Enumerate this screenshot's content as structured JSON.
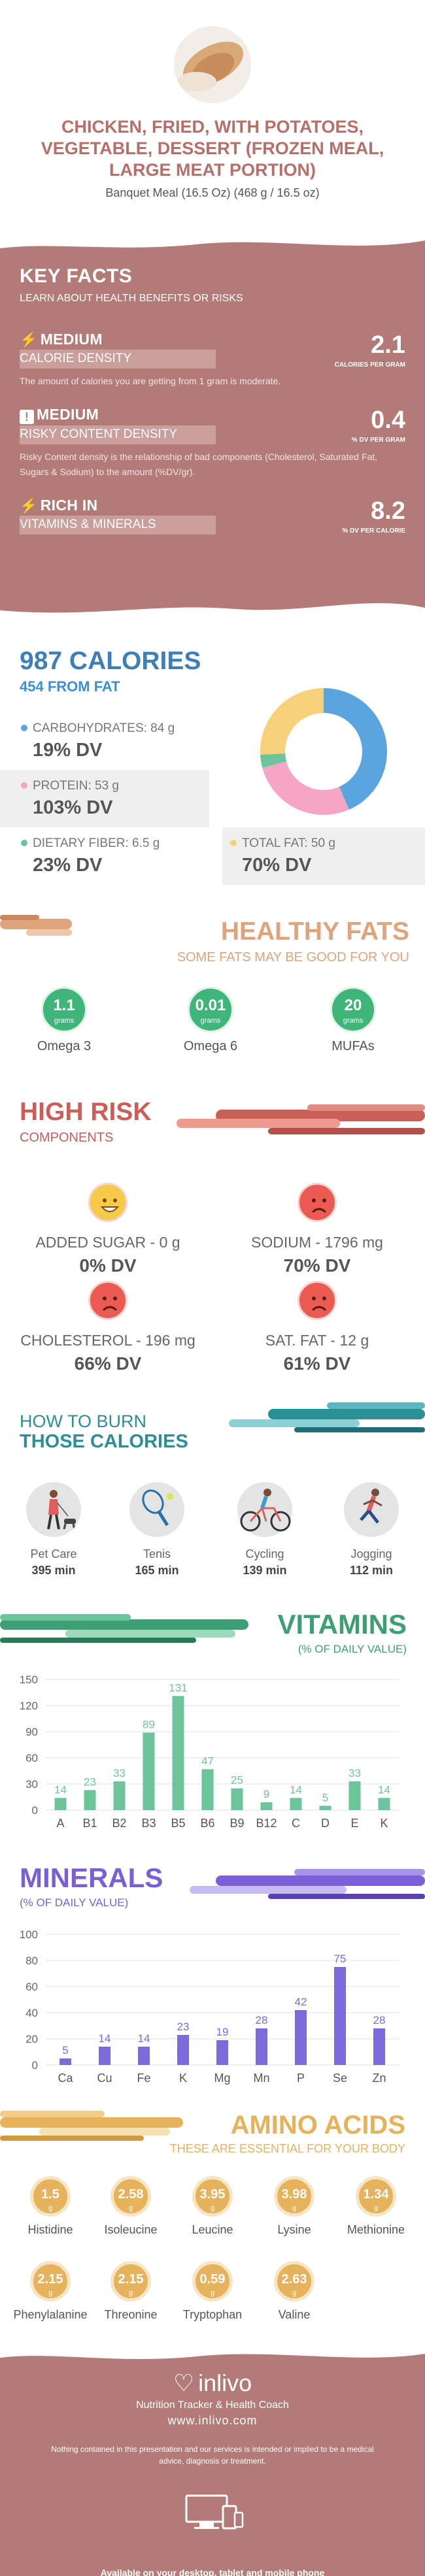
{
  "header": {
    "title": "CHICKEN, FRIED, WITH POTATOES, VEGETABLE, DESSERT (FROZEN MEAL, LARGE MEAT PORTION)",
    "subtitle": "Banquet Meal (16.5 Oz) (468 g / 16.5 oz)"
  },
  "key_facts": {
    "title": "KEY FACTS",
    "subtitle": "LEARN ABOUT HEALTH BENEFITS OR RISKS",
    "items": [
      {
        "level": "MEDIUM",
        "caption": "CALORIE DENSITY",
        "value": "2.1",
        "unit": "CALORIES PER GRAM",
        "desc": "The amount of calories you are getting from 1 gram is moderate.",
        "icon": "bolt-icon"
      },
      {
        "level": "MEDIUM",
        "caption": "RISKY CONTENT DENSITY",
        "value": "0.4",
        "unit": "% DV PER GRAM",
        "desc": "Risky Content density is the relationship of bad components (Cholesterol, Saturated Fat, Sugars & Sodium) to the amount (%DV/gr).",
        "icon": "warning-icon"
      },
      {
        "level": "RICH  IN",
        "caption": "VITAMINS & MINERALS",
        "value": "8.2",
        "unit": "% DV PER CALORIE",
        "icon": "bolt-icon"
      }
    ]
  },
  "calories": {
    "title": "987 CALORIES",
    "from_fat": "454 FROM FAT",
    "nutrients": [
      {
        "label": "CARBOHYDRATES: 84 g",
        "dv": "19% DV",
        "color": "#5aa5e0",
        "value": 84
      },
      {
        "label": "PROTEIN: 53 g",
        "dv": "103% DV",
        "color": "#f4a6c4",
        "value": 53
      },
      {
        "label": "DIETARY FIBER: 6.5 g",
        "dv": "23% DV",
        "color": "#6cc49a",
        "value": 6.5
      },
      {
        "label": "TOTAL FAT: 50 g",
        "dv": "70% DV",
        "color": "#f7d07a",
        "value": 50
      }
    ]
  },
  "healthy_fats": {
    "title": "HEALTHY FATS",
    "subtitle": "SOME FATS MAY BE GOOD FOR YOU",
    "items": [
      {
        "value": "1.1",
        "unit": "grams",
        "label": "Omega 3"
      },
      {
        "value": "0.01",
        "unit": "grams",
        "label": "Omega 6"
      },
      {
        "value": "20",
        "unit": "grams",
        "label": "MUFAs"
      }
    ]
  },
  "high_risk": {
    "title": "HIGH RISK",
    "subtitle": "COMPONENTS",
    "items": [
      {
        "label": "ADDED SUGAR - 0 g",
        "dv": "0% DV",
        "face": "happy",
        "color": "#f7c948"
      },
      {
        "label": "SODIUM - 1796 mg",
        "dv": "70% DV",
        "face": "sad",
        "color": "#ec5b52"
      },
      {
        "label": "CHOLESTEROL - 196 mg",
        "dv": "66% DV",
        "face": "sad",
        "color": "#ec5b52"
      },
      {
        "label": "SAT. FAT - 12 g",
        "dv": "61% DV",
        "face": "sad",
        "color": "#ec5b52"
      }
    ]
  },
  "burn": {
    "title1": "HOW TO BURN",
    "title2": "THOSE CALORIES",
    "items": [
      {
        "name": "Pet Care",
        "minutes": "395 min",
        "icon": "dog-walking-icon"
      },
      {
        "name": "Tenis",
        "minutes": "165 min",
        "icon": "tennis-racket-icon"
      },
      {
        "name": "Cycling",
        "minutes": "139 min",
        "icon": "cycling-icon"
      },
      {
        "name": "Jogging",
        "minutes": "112 min",
        "icon": "running-icon"
      }
    ]
  },
  "vitamins": {
    "title": "VITAMINS",
    "subtitle": "(% OF DAILY VALUE)",
    "chart_data": {
      "type": "bar",
      "categories": [
        "A",
        "B1",
        "B2",
        "B3",
        "B5",
        "B6",
        "B9",
        "B12",
        "C",
        "D",
        "E",
        "K"
      ],
      "values": [
        14,
        23,
        33,
        89,
        131,
        47,
        25,
        9,
        14,
        5,
        33,
        14
      ],
      "ylim": [
        0,
        150
      ],
      "yticks": [
        0,
        30,
        60,
        90,
        120,
        150
      ],
      "color": "#6cc49a",
      "grid": true
    }
  },
  "minerals": {
    "title": "MINERALS",
    "subtitle": "(% OF DAILY VALUE)",
    "chart_data": {
      "type": "bar",
      "categories": [
        "Ca",
        "Cu",
        "Fe",
        "K",
        "Mg",
        "Mn",
        "P",
        "Se",
        "Zn"
      ],
      "values": [
        5,
        14,
        14,
        23,
        19,
        28,
        42,
        75,
        28
      ],
      "ylim": [
        0,
        100
      ],
      "yticks": [
        0,
        20,
        40,
        60,
        80,
        100
      ],
      "color": "#7b6bdc",
      "grid": true
    }
  },
  "amino": {
    "title": "AMINO ACIDS",
    "subtitle": "THESE ARE ESSENTIAL FOR YOUR BODY",
    "items": [
      {
        "value": "1.5",
        "unit": "g",
        "label": "Histidine"
      },
      {
        "value": "2.58",
        "unit": "g",
        "label": "Isoleucine"
      },
      {
        "value": "3.95",
        "unit": "g",
        "label": "Leucine"
      },
      {
        "value": "3.98",
        "unit": "g",
        "label": "Lysine"
      },
      {
        "value": "1.34",
        "unit": "g",
        "label": "Methionine"
      },
      {
        "value": "2.15",
        "unit": "g",
        "label": "Phenylalanine"
      },
      {
        "value": "2.15",
        "unit": "g",
        "label": "Threonine"
      },
      {
        "value": "0.59",
        "unit": "g",
        "label": "Tryptophan"
      },
      {
        "value": "2.63",
        "unit": "g",
        "label": "Valine"
      }
    ]
  },
  "footer": {
    "brand": "inlivo",
    "tagline": "Nutrition Tracker & Health Coach",
    "url": "www.inlivo.com",
    "disclaimer": "Nothing contained in this presentation and our services is intended or implied to be a medical advice, diagnosis or treatment.",
    "available": "Available on your desktop, tablet and mobile phone"
  }
}
